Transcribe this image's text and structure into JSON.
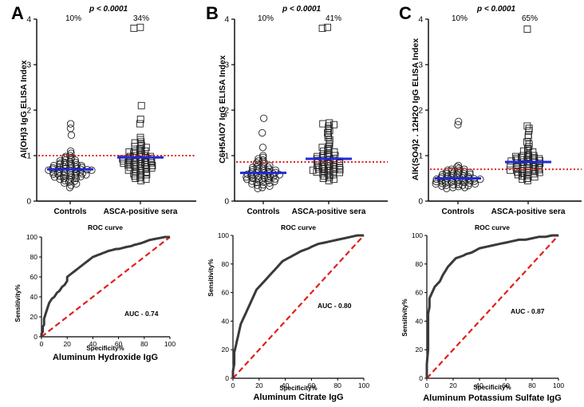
{
  "chart_data": [
    {
      "type": "scatter",
      "panel": "A",
      "ylabel": "Al(OH)3 IgG ELISA Index",
      "ylim": [
        0,
        4
      ],
      "yticks": [
        0,
        1,
        2,
        3,
        4
      ],
      "categories": [
        "Controls",
        "ASCA-positive sera"
      ],
      "percent_labels": [
        "10%",
        "34%"
      ],
      "p_value": "p < 0.0001",
      "cutoff": 1.0,
      "means": [
        0.7,
        0.96
      ],
      "groups": [
        {
          "name": "Controls",
          "marker": "circle",
          "values": [
            1.7,
            1.6,
            1.45,
            1.1,
            1.05,
            1.0,
            0.98,
            0.95,
            0.95,
            0.92,
            0.9,
            0.9,
            0.88,
            0.87,
            0.85,
            0.85,
            0.83,
            0.82,
            0.8,
            0.8,
            0.8,
            0.78,
            0.78,
            0.77,
            0.76,
            0.75,
            0.75,
            0.74,
            0.73,
            0.72,
            0.72,
            0.71,
            0.7,
            0.7,
            0.7,
            0.69,
            0.68,
            0.68,
            0.67,
            0.66,
            0.65,
            0.65,
            0.64,
            0.63,
            0.62,
            0.62,
            0.61,
            0.6,
            0.6,
            0.59,
            0.58,
            0.57,
            0.56,
            0.55,
            0.55,
            0.54,
            0.53,
            0.52,
            0.5,
            0.5,
            0.48,
            0.47,
            0.45,
            0.44,
            0.42,
            0.4,
            0.38,
            0.35,
            0.3
          ]
        },
        {
          "name": "ASCA-positive sera",
          "marker": "square",
          "values": [
            3.82,
            3.8,
            2.1,
            1.8,
            1.7,
            1.4,
            1.35,
            1.3,
            1.28,
            1.25,
            1.22,
            1.2,
            1.18,
            1.15,
            1.12,
            1.1,
            1.1,
            1.08,
            1.05,
            1.05,
            1.02,
            1.0,
            1.0,
            0.98,
            0.98,
            0.97,
            0.96,
            0.95,
            0.95,
            0.94,
            0.93,
            0.92,
            0.91,
            0.9,
            0.9,
            0.89,
            0.88,
            0.87,
            0.86,
            0.85,
            0.85,
            0.84,
            0.83,
            0.82,
            0.8,
            0.8,
            0.79,
            0.78,
            0.77,
            0.76,
            0.75,
            0.74,
            0.73,
            0.72,
            0.7,
            0.7,
            0.68,
            0.67,
            0.65,
            0.64,
            0.62,
            0.6,
            0.58,
            0.56,
            0.55,
            0.52,
            0.5,
            0.48,
            0.45
          ]
        }
      ]
    },
    {
      "type": "scatter",
      "panel": "B",
      "ylabel": "C6H5AlO7 IgG ELISA Index",
      "ylim": [
        0,
        4
      ],
      "yticks": [
        0,
        1,
        2,
        3,
        4
      ],
      "categories": [
        "Controls",
        "ASCA-positive sera"
      ],
      "percent_labels": [
        "10%",
        "41%"
      ],
      "p_value": "p < 0.0001",
      "cutoff": 0.86,
      "means": [
        0.62,
        0.93
      ],
      "groups": [
        {
          "name": "Controls",
          "marker": "circle",
          "values": [
            1.82,
            1.5,
            1.18,
            1.0,
            0.96,
            0.93,
            0.9,
            0.88,
            0.86,
            0.84,
            0.82,
            0.8,
            0.78,
            0.77,
            0.76,
            0.75,
            0.74,
            0.72,
            0.71,
            0.7,
            0.69,
            0.68,
            0.67,
            0.66,
            0.65,
            0.64,
            0.63,
            0.62,
            0.62,
            0.61,
            0.6,
            0.6,
            0.59,
            0.58,
            0.57,
            0.56,
            0.55,
            0.55,
            0.54,
            0.53,
            0.52,
            0.51,
            0.5,
            0.5,
            0.49,
            0.48,
            0.47,
            0.46,
            0.45,
            0.44,
            0.43,
            0.42,
            0.41,
            0.4,
            0.38,
            0.36,
            0.35,
            0.33,
            0.3,
            0.28
          ]
        },
        {
          "name": "ASCA-positive sera",
          "marker": "square",
          "values": [
            3.82,
            3.8,
            1.72,
            1.7,
            1.68,
            1.65,
            1.6,
            1.55,
            1.5,
            1.45,
            1.4,
            1.35,
            1.3,
            1.25,
            1.2,
            1.18,
            1.15,
            1.12,
            1.1,
            1.08,
            1.05,
            1.02,
            1.0,
            1.0,
            0.98,
            0.97,
            0.95,
            0.94,
            0.93,
            0.92,
            0.9,
            0.9,
            0.89,
            0.88,
            0.87,
            0.86,
            0.85,
            0.84,
            0.83,
            0.82,
            0.8,
            0.8,
            0.79,
            0.78,
            0.77,
            0.76,
            0.75,
            0.74,
            0.73,
            0.72,
            0.71,
            0.7,
            0.7,
            0.69,
            0.68,
            0.67,
            0.66,
            0.65,
            0.64,
            0.63,
            0.62,
            0.6,
            0.58,
            0.56,
            0.55,
            0.52,
            0.5,
            0.48,
            0.45
          ]
        }
      ]
    },
    {
      "type": "scatter",
      "panel": "C",
      "ylabel": "AlK(SO4)2 . 12H2O IgG ELISA Index",
      "ylim": [
        0,
        4
      ],
      "yticks": [
        0,
        1,
        2,
        3,
        4
      ],
      "categories": [
        "Controls",
        "ASCA-positive sera"
      ],
      "percent_labels": [
        "10%",
        "65%"
      ],
      "p_value": "p < 0.0001",
      "cutoff": 0.7,
      "means": [
        0.5,
        0.86
      ],
      "groups": [
        {
          "name": "Controls",
          "marker": "circle",
          "values": [
            1.75,
            1.68,
            0.78,
            0.75,
            0.72,
            0.7,
            0.7,
            0.68,
            0.67,
            0.66,
            0.65,
            0.64,
            0.63,
            0.62,
            0.61,
            0.6,
            0.6,
            0.59,
            0.58,
            0.57,
            0.56,
            0.55,
            0.55,
            0.54,
            0.53,
            0.52,
            0.52,
            0.51,
            0.5,
            0.5,
            0.5,
            0.49,
            0.48,
            0.48,
            0.47,
            0.47,
            0.46,
            0.45,
            0.45,
            0.44,
            0.44,
            0.43,
            0.42,
            0.42,
            0.41,
            0.4,
            0.4,
            0.39,
            0.38,
            0.38,
            0.37,
            0.36,
            0.35,
            0.35,
            0.34,
            0.33,
            0.32,
            0.3,
            0.3,
            0.28
          ]
        },
        {
          "name": "ASCA-positive sera",
          "marker": "square",
          "values": [
            3.78,
            1.65,
            1.6,
            1.55,
            1.45,
            1.4,
            1.3,
            1.25,
            1.2,
            1.15,
            1.12,
            1.1,
            1.08,
            1.05,
            1.02,
            1.0,
            1.0,
            0.98,
            0.97,
            0.96,
            0.95,
            0.94,
            0.93,
            0.92,
            0.91,
            0.9,
            0.9,
            0.89,
            0.88,
            0.87,
            0.86,
            0.85,
            0.84,
            0.83,
            0.82,
            0.81,
            0.8,
            0.8,
            0.79,
            0.78,
            0.77,
            0.76,
            0.75,
            0.74,
            0.73,
            0.72,
            0.71,
            0.7,
            0.7,
            0.69,
            0.68,
            0.67,
            0.66,
            0.65,
            0.64,
            0.63,
            0.62,
            0.61,
            0.6,
            0.58,
            0.56,
            0.55,
            0.53,
            0.5,
            0.48,
            0.45
          ]
        }
      ]
    },
    {
      "type": "line",
      "subtype": "roc",
      "title": "ROC curve",
      "xlabel": "Aluminum Hydroxide IgG",
      "ylabel": "Sensitivity%",
      "x_axis_caption": "Specificity%",
      "auc_label": "AUC - 0.74",
      "xlim": [
        0,
        100
      ],
      "ylim": [
        0,
        100
      ],
      "ticks": [
        0,
        20,
        40,
        60,
        80,
        100
      ],
      "x": [
        0,
        0,
        1,
        1,
        2,
        2,
        3,
        4,
        5,
        6,
        7,
        8,
        10,
        12,
        14,
        15,
        16,
        18,
        20,
        20,
        22,
        24,
        26,
        28,
        30,
        32,
        34,
        36,
        38,
        40,
        42,
        44,
        46,
        48,
        50,
        52,
        55,
        58,
        60,
        63,
        66,
        70,
        72,
        75,
        78,
        80,
        84,
        88,
        92,
        96,
        100
      ],
      "y": [
        0,
        3,
        5,
        10,
        12,
        18,
        22,
        26,
        30,
        34,
        36,
        38,
        40,
        44,
        46,
        48,
        50,
        52,
        56,
        60,
        62,
        64,
        66,
        68,
        70,
        72,
        74,
        76,
        78,
        80,
        81,
        82,
        83,
        84,
        85,
        86,
        87,
        88,
        88,
        89,
        90,
        91,
        92,
        93,
        94,
        95,
        97,
        98,
        99,
        100,
        100
      ]
    },
    {
      "type": "line",
      "subtype": "roc",
      "title": "ROC curve",
      "xlabel": "Aluminum Citrate IgG",
      "ylabel": "Sensitivity%",
      "x_axis_caption": "Specificity%",
      "auc_label": "AUC - 0.80",
      "xlim": [
        0,
        100
      ],
      "ylim": [
        0,
        100
      ],
      "ticks": [
        0,
        20,
        40,
        60,
        80,
        100
      ],
      "x": [
        0,
        0,
        1,
        1,
        2,
        3,
        4,
        5,
        6,
        7,
        8,
        9,
        10,
        12,
        14,
        16,
        18,
        20,
        22,
        24,
        26,
        28,
        30,
        32,
        34,
        36,
        38,
        40,
        42,
        44,
        46,
        48,
        50,
        52,
        55,
        58,
        60,
        65,
        70,
        75,
        80,
        85,
        90,
        95,
        100
      ],
      "y": [
        0,
        5,
        10,
        18,
        22,
        26,
        30,
        34,
        38,
        40,
        42,
        44,
        46,
        50,
        54,
        58,
        62,
        64,
        66,
        68,
        70,
        72,
        74,
        76,
        78,
        80,
        82,
        83,
        84,
        85,
        86,
        87,
        88,
        89,
        90,
        91,
        92,
        94,
        95,
        96,
        97,
        98,
        99,
        100,
        100
      ]
    },
    {
      "type": "line",
      "subtype": "roc",
      "title": "ROC curve",
      "xlabel": "Aluminum Potassium Sulfate IgG",
      "ylabel": "Sensitivity%",
      "x_axis_caption": "Specificity%",
      "auc_label": "AUC - 0.87",
      "xlim": [
        0,
        100
      ],
      "ylim": [
        0,
        100
      ],
      "ticks": [
        0,
        20,
        40,
        60,
        80,
        100
      ],
      "x": [
        0,
        0,
        1,
        1,
        1,
        2,
        2,
        3,
        4,
        5,
        6,
        8,
        10,
        12,
        14,
        16,
        18,
        20,
        22,
        25,
        28,
        30,
        34,
        38,
        40,
        45,
        50,
        55,
        60,
        65,
        70,
        75,
        80,
        85,
        90,
        95,
        100
      ],
      "y": [
        0,
        10,
        20,
        35,
        45,
        50,
        56,
        58,
        60,
        62,
        64,
        66,
        68,
        72,
        75,
        78,
        80,
        82,
        84,
        85,
        86,
        87,
        88,
        90,
        91,
        92,
        93,
        94,
        95,
        96,
        97,
        97,
        98,
        99,
        99,
        100,
        100
      ]
    }
  ]
}
